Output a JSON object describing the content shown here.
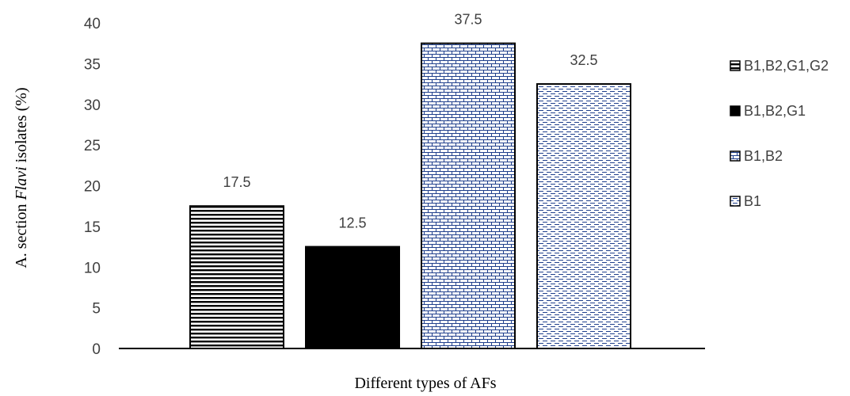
{
  "chart_data": {
    "type": "bar",
    "categories": [
      "B1,B2,G1,G2",
      "B1,B2,G1",
      "B1,B2",
      "B1"
    ],
    "values": [
      17.5,
      12.5,
      37.5,
      32.5
    ],
    "data_labels": [
      "17.5",
      "12.5",
      "37.5",
      "32.5"
    ],
    "xlabel": "Different types of AFs",
    "ylabel_parts": {
      "prefix": "A. section ",
      "italic": "Flavi",
      "suffix": " isolates (%)"
    },
    "ylim": [
      0,
      40
    ],
    "yticks": [
      0,
      5,
      10,
      15,
      20,
      25,
      30,
      35,
      40
    ],
    "grid": false,
    "legend": {
      "placement": "right",
      "entries": [
        "B1,B2,G1,G2",
        "B1,B2,G1",
        "B1,B2",
        "B1"
      ]
    },
    "patterns": [
      "horizontal-stripes",
      "solid-black",
      "brick-blue",
      "dashed-blue"
    ],
    "colors": {
      "black": "#000000",
      "pattern_blue": "#1f3f8c",
      "text": "#404040"
    }
  }
}
